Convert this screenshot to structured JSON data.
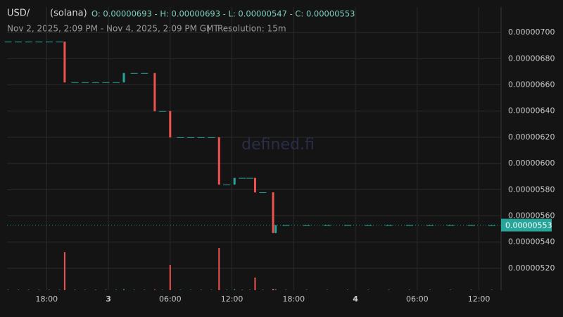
{
  "chart_data": {
    "type": "candlestick",
    "symbol": "USD/",
    "network": "(solana)",
    "ohlc_text": "O: 0.00000693 - H: 0.00000693 - L: 0.00000547 - C: 0.00000553",
    "subtitle": "Nov 2, 2025, 2:09 PM - Nov 4, 2025, 2:09 PM GMT",
    "separator": "|",
    "resolution": "Resolution: 15m",
    "watermark": "defined.fi",
    "up_color": "#26a69a",
    "down_color": "#ef5350",
    "grid": true,
    "x": [
      "2025-11-02T14:15",
      "2025-11-02T15:15",
      "2025-11-02T16:15",
      "2025-11-02T17:15",
      "2025-11-02T18:15",
      "2025-11-02T19:15",
      "2025-11-02T19:45",
      "2025-11-02T20:45",
      "2025-11-02T21:45",
      "2025-11-02T22:45",
      "2025-11-02T23:45",
      "2025-11-03T00:45",
      "2025-11-03T01:30",
      "2025-11-03T02:30",
      "2025-11-03T03:30",
      "2025-11-03T04:30",
      "2025-11-03T05:15",
      "2025-11-03T06:00",
      "2025-11-03T07:00",
      "2025-11-03T08:00",
      "2025-11-03T09:00",
      "2025-11-03T10:00",
      "2025-11-03T10:45",
      "2025-11-03T11:30",
      "2025-11-03T12:15",
      "2025-11-03T13:00",
      "2025-11-03T13:45",
      "2025-11-03T14:15",
      "2025-11-03T15:00",
      "2025-11-03T16:00",
      "2025-11-03T16:15",
      "2025-11-03T17:15",
      "2025-11-03T19:15",
      "2025-11-03T21:15",
      "2025-11-03T23:15",
      "2025-11-04T01:15",
      "2025-11-04T03:15",
      "2025-11-04T05:15",
      "2025-11-04T07:15",
      "2025-11-04T09:15",
      "2025-11-04T11:15",
      "2025-11-04T13:15"
    ],
    "open": [
      6.93e-06,
      6.93e-06,
      6.93e-06,
      6.93e-06,
      6.93e-06,
      6.93e-06,
      6.93e-06,
      6.62e-06,
      6.62e-06,
      6.62e-06,
      6.62e-06,
      6.62e-06,
      6.62e-06,
      6.69e-06,
      6.69e-06,
      6.69e-06,
      6.4e-06,
      6.4e-06,
      6.2e-06,
      6.2e-06,
      6.2e-06,
      6.2e-06,
      6.2e-06,
      5.84e-06,
      5.84e-06,
      5.89e-06,
      5.89e-06,
      5.89e-06,
      5.78e-06,
      5.78e-06,
      5.47e-06,
      5.53e-06,
      5.53e-06,
      5.53e-06,
      5.53e-06,
      5.53e-06,
      5.53e-06,
      5.53e-06,
      5.53e-06,
      5.53e-06,
      5.53e-06,
      5.53e-06
    ],
    "high": [
      6.93e-06,
      6.93e-06,
      6.93e-06,
      6.93e-06,
      6.93e-06,
      6.93e-06,
      6.93e-06,
      6.62e-06,
      6.62e-06,
      6.62e-06,
      6.62e-06,
      6.62e-06,
      6.69e-06,
      6.69e-06,
      6.69e-06,
      6.69e-06,
      6.4e-06,
      6.4e-06,
      6.2e-06,
      6.2e-06,
      6.2e-06,
      6.2e-06,
      6.2e-06,
      5.84e-06,
      5.89e-06,
      5.89e-06,
      5.89e-06,
      5.89e-06,
      5.78e-06,
      5.78e-06,
      5.53e-06,
      5.53e-06,
      5.53e-06,
      5.53e-06,
      5.53e-06,
      5.53e-06,
      5.53e-06,
      5.53e-06,
      5.53e-06,
      5.53e-06,
      5.53e-06,
      5.53e-06
    ],
    "low": [
      6.93e-06,
      6.93e-06,
      6.93e-06,
      6.93e-06,
      6.93e-06,
      6.93e-06,
      6.62e-06,
      6.62e-06,
      6.62e-06,
      6.62e-06,
      6.62e-06,
      6.62e-06,
      6.62e-06,
      6.69e-06,
      6.69e-06,
      6.4e-06,
      6.4e-06,
      6.2e-06,
      6.2e-06,
      6.2e-06,
      6.2e-06,
      6.2e-06,
      5.84e-06,
      5.84e-06,
      5.84e-06,
      5.89e-06,
      5.89e-06,
      5.78e-06,
      5.78e-06,
      5.47e-06,
      5.47e-06,
      5.53e-06,
      5.53e-06,
      5.53e-06,
      5.53e-06,
      5.53e-06,
      5.53e-06,
      5.53e-06,
      5.53e-06,
      5.53e-06,
      5.53e-06,
      5.53e-06
    ],
    "close": [
      6.93e-06,
      6.93e-06,
      6.93e-06,
      6.93e-06,
      6.93e-06,
      6.93e-06,
      6.62e-06,
      6.62e-06,
      6.62e-06,
      6.62e-06,
      6.62e-06,
      6.62e-06,
      6.69e-06,
      6.69e-06,
      6.69e-06,
      6.4e-06,
      6.4e-06,
      6.2e-06,
      6.2e-06,
      6.2e-06,
      6.2e-06,
      6.2e-06,
      5.84e-06,
      5.84e-06,
      5.89e-06,
      5.89e-06,
      5.89e-06,
      5.78e-06,
      5.78e-06,
      5.47e-06,
      5.53e-06,
      5.53e-06,
      5.53e-06,
      5.53e-06,
      5.53e-06,
      5.53e-06,
      5.53e-06,
      5.53e-06,
      5.53e-06,
      5.53e-06,
      5.53e-06,
      5.53e-06
    ],
    "volume": [
      1,
      1,
      1,
      1,
      1,
      1,
      54,
      1,
      1,
      1,
      1,
      1,
      2,
      1,
      1,
      1,
      1,
      36,
      1,
      1,
      1,
      1,
      60,
      1,
      2,
      1,
      1,
      18,
      1,
      2,
      2,
      1,
      1,
      1,
      1,
      1,
      1,
      1,
      1,
      1,
      1,
      1
    ],
    "xlim": [
      "2025-11-02T14:09",
      "2025-11-04T14:09"
    ],
    "xticks": [
      {
        "value": "2025-11-02T18:00",
        "label": "18:00"
      },
      {
        "value": "2025-11-03T00:00",
        "label": "3"
      },
      {
        "value": "2025-11-03T06:00",
        "label": "06:00"
      },
      {
        "value": "2025-11-03T12:00",
        "label": "12:00"
      },
      {
        "value": "2025-11-03T18:00",
        "label": "18:00"
      },
      {
        "value": "2025-11-04T00:00",
        "label": "4"
      },
      {
        "value": "2025-11-04T06:00",
        "label": "06:00"
      },
      {
        "value": "2025-11-04T12:00",
        "label": "12:00"
      }
    ],
    "ylim": [
      5.033e-06,
      7.194e-06
    ],
    "yticks": [
      {
        "value": 5.2e-06,
        "label": "0.00000520"
      },
      {
        "value": 5.4e-06,
        "label": "0.00000540"
      },
      {
        "value": 5.6e-06,
        "label": "0.00000560"
      },
      {
        "value": 5.8e-06,
        "label": "0.00000580"
      },
      {
        "value": 6e-06,
        "label": "0.00000600"
      },
      {
        "value": 6.2e-06,
        "label": "0.00000620"
      },
      {
        "value": 6.4e-06,
        "label": "0.00000640"
      },
      {
        "value": 6.6e-06,
        "label": "0.00000660"
      },
      {
        "value": 6.8e-06,
        "label": "0.00000680"
      },
      {
        "value": 7e-06,
        "label": "0.00000700"
      }
    ],
    "last_price": 5.53e-06,
    "last_price_label": "0.00000553"
  }
}
